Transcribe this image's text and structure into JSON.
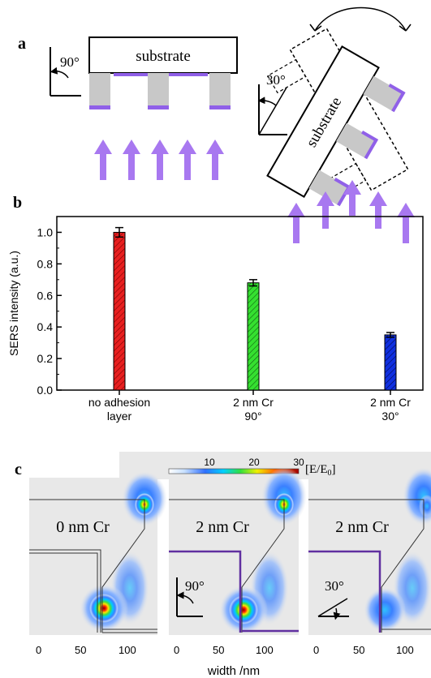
{
  "panel_a": {
    "label": "a",
    "substrate_left": "substrate",
    "substrate_right": "substrate",
    "angle_left": "90°",
    "angle_right": "30°"
  },
  "panel_b": {
    "label": "b"
  },
  "panel_c": {
    "label": "c",
    "colorbar_ticks": [
      "10",
      "20",
      "30"
    ],
    "colorbar_unit": "[E/E",
    "colorbar_unit_sub": "0",
    "colorbar_unit_end": "]",
    "sims": [
      {
        "label": "0 nm Cr",
        "angle": ""
      },
      {
        "label": "2 nm Cr",
        "angle": "90°"
      },
      {
        "label": "2 nm Cr",
        "angle": "30°"
      }
    ],
    "xticks": [
      "0",
      "50",
      "100"
    ],
    "xlabel": "width /nm"
  },
  "colors": {
    "bar_red": "#e82020",
    "bar_green": "#35e030",
    "bar_blue": "#1030e0",
    "purple": "#9060e8",
    "arrow": "#a878f0"
  },
  "chart_data": {
    "type": "bar",
    "categories": [
      "no adhesion\nlayer",
      "2 nm Cr\n90°",
      "2 nm Cr\n30°"
    ],
    "category_lines": [
      [
        "no adhesion",
        "layer"
      ],
      [
        "2 nm Cr",
        "90°"
      ],
      [
        "2 nm Cr",
        "30°"
      ]
    ],
    "values": [
      1.0,
      0.68,
      0.35
    ],
    "errors": [
      0.03,
      0.02,
      0.015
    ],
    "ylabel": "SERS intensity (a.u.)",
    "yticks": [
      "0.0",
      "0.2",
      "0.4",
      "0.6",
      "0.8",
      "1.0"
    ],
    "ylim": [
      0,
      1.1
    ],
    "grid": false,
    "hatched": true
  }
}
